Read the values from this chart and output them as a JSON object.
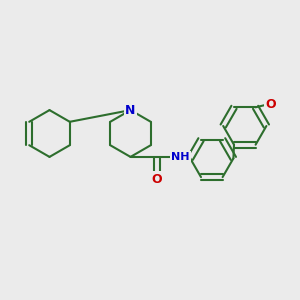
{
  "background_color": "#ebebeb",
  "bond_color": "#2d6e2d",
  "N_color": "#0000cc",
  "O_color": "#cc0000",
  "line_width": 1.5,
  "figsize": [
    3.0,
    3.0
  ],
  "dpi": 100,
  "xlim": [
    0,
    10
  ],
  "ylim": [
    0,
    10
  ]
}
